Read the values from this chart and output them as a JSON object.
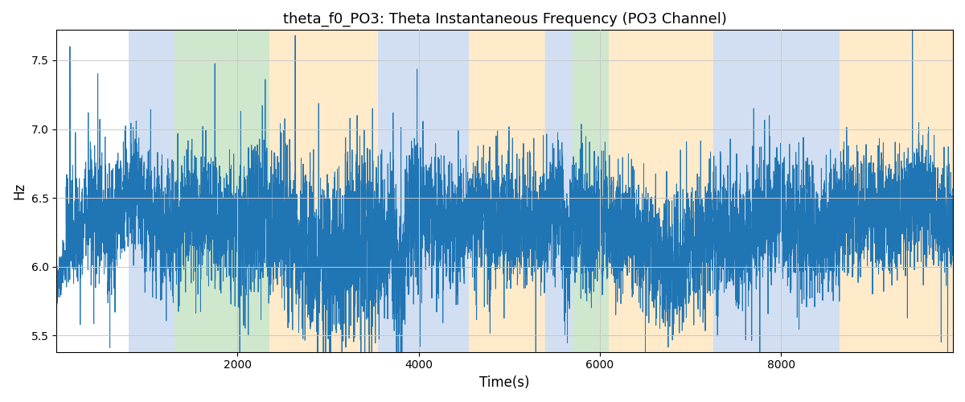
{
  "title": "theta_f0_PO3: Theta Instantaneous Frequency (PO3 Channel)",
  "xlabel": "Time(s)",
  "ylabel": "Hz",
  "xlim": [
    0,
    9900
  ],
  "ylim": [
    5.38,
    7.72
  ],
  "yticks": [
    5.5,
    6.0,
    6.5,
    7.0,
    7.5
  ],
  "xticks": [
    2000,
    4000,
    6000,
    8000
  ],
  "line_color": "#2075b4",
  "line_width": 0.7,
  "bg_color": "#ffffff",
  "grid_color": "#c8c8c8",
  "bands": [
    {
      "xmin": 800,
      "xmax": 1300,
      "color": "#aec6e8",
      "alpha": 0.55
    },
    {
      "xmin": 1300,
      "xmax": 2350,
      "color": "#a8d5a2",
      "alpha": 0.55
    },
    {
      "xmin": 2350,
      "xmax": 3550,
      "color": "#ffd9a0",
      "alpha": 0.55
    },
    {
      "xmin": 3550,
      "xmax": 4550,
      "color": "#aec6e8",
      "alpha": 0.55
    },
    {
      "xmin": 4550,
      "xmax": 5400,
      "color": "#ffd9a0",
      "alpha": 0.55
    },
    {
      "xmin": 5400,
      "xmax": 5700,
      "color": "#aec6e8",
      "alpha": 0.55
    },
    {
      "xmin": 5700,
      "xmax": 6100,
      "color": "#a8d5a2",
      "alpha": 0.55
    },
    {
      "xmin": 6100,
      "xmax": 7250,
      "color": "#ffd9a0",
      "alpha": 0.55
    },
    {
      "xmin": 7250,
      "xmax": 7550,
      "color": "#aec6e8",
      "alpha": 0.55
    },
    {
      "xmin": 7550,
      "xmax": 8650,
      "color": "#aec6e8",
      "alpha": 0.55
    },
    {
      "xmin": 8650,
      "xmax": 9900,
      "color": "#ffd9a0",
      "alpha": 0.55
    }
  ],
  "seed": 42,
  "n_points": 9900,
  "base_freq": 6.28,
  "noise_std": 0.22,
  "spike_prob": 0.015,
  "spike_magnitude": 0.55
}
